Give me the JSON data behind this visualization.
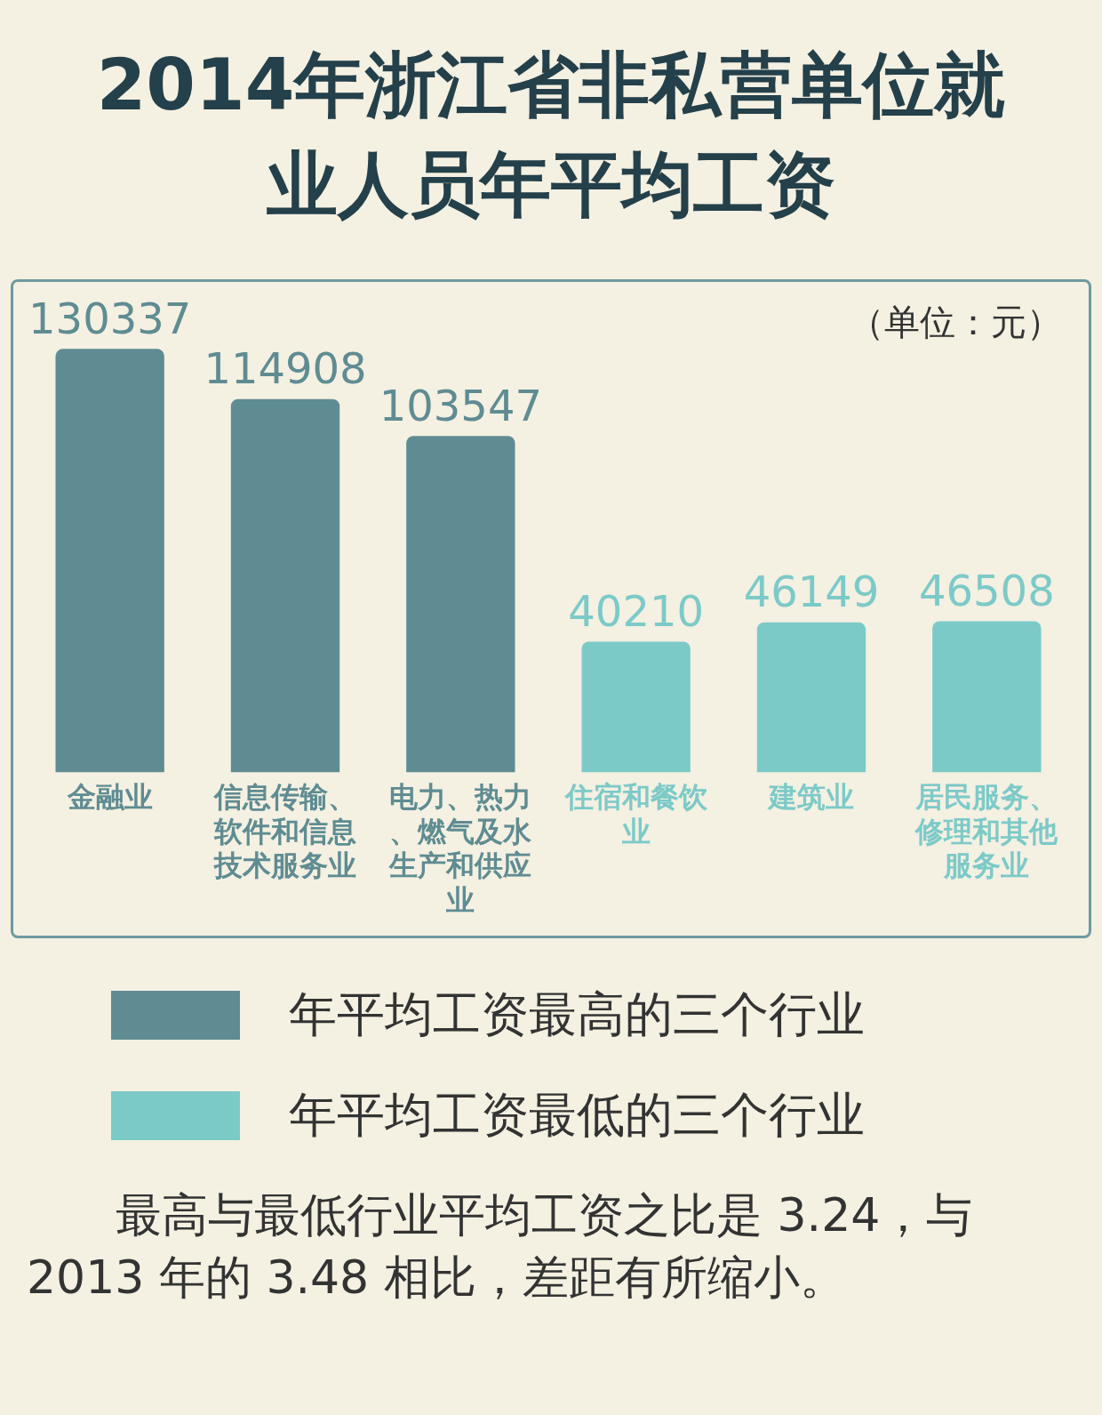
{
  "chart_data": {
    "type": "bar",
    "title": "2014年浙江省非私营单位就业人员年平均工资",
    "subtitle": "（单位：元）",
    "categories": [
      "金融业",
      "信息传输、软件和信息技术服务业",
      "电力、热力、燃气及水生产和供应业",
      "住宿和餐饮业",
      "建筑业",
      "居民服务、修理和其他服务业"
    ],
    "series": [
      {
        "name": "年平均工资最高的三个行业",
        "color": "#5f8c92",
        "values": [
          130337,
          114908,
          103547,
          null,
          null,
          null
        ]
      },
      {
        "name": "年平均工资最低的三个行业",
        "color": "#7ccac8",
        "values": [
          null,
          null,
          null,
          40210,
          46149,
          46508
        ]
      }
    ],
    "data_labels": true,
    "legend": "bottom",
    "annotations": [
      "最高与最低行业平均工资之比是 3.24，与 2013 年的 3.48 相比，差距有所缩小。"
    ]
  }
}
